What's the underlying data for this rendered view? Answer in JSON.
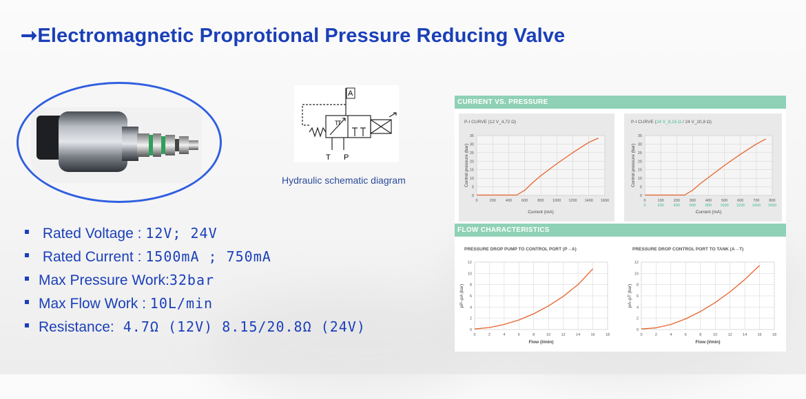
{
  "title": "➞Electromagnetic Proprotional Pressure Reducing Valve",
  "schematic": {
    "caption": "Hydraulic schematic diagram",
    "port_a": "A",
    "port_t": "T",
    "port_p": "P",
    "inner_t1": "T",
    "inner_t2": "T"
  },
  "specs": [
    {
      "label": " Rated  Voltage : ",
      "value": " 12V; 24V"
    },
    {
      "label": " Rated Current : ",
      "value": " 1500mA ; 750mA"
    },
    {
      "label": "Max Pressure Work:",
      "value": "32bar"
    },
    {
      "label": "Max Flow Work : ",
      "value": "10L/min"
    },
    {
      "label": "Resistance:",
      "value": " 4.7Ω  (12V) 8.15/20.8Ω  (24V)"
    }
  ],
  "current_panel": {
    "header": "CURRENT VS. PRESSURE"
  },
  "flow_panel": {
    "header": "FLOW CHARACTERISTICS"
  },
  "colors": {
    "accent": "#1a3fb8",
    "curve": "#e8622a",
    "panel_header": "#8fd1b6",
    "green_ticks": "#3dbb8c"
  },
  "chart_data": [
    {
      "type": "line",
      "title": "P-I CURVE (12 V_4,72 Ω)",
      "xlabel": "Current (mA)",
      "ylabel": "Control pressure (bar)",
      "x_ticks": [
        "0",
        "200",
        "400",
        "600",
        "800",
        "1000",
        "1200",
        "1400",
        "1600"
      ],
      "y_ticks": [
        "0",
        "5",
        "10",
        "15",
        "20",
        "25",
        "30",
        "35"
      ],
      "xlim": [
        0,
        1600
      ],
      "ylim": [
        0,
        35
      ],
      "series": [
        {
          "x": [
            0,
            500,
            600,
            700,
            800,
            1000,
            1200,
            1400,
            1520
          ],
          "y": [
            0.2,
            0.2,
            3,
            7.5,
            11.5,
            18.5,
            25,
            31,
            33.5
          ]
        }
      ]
    },
    {
      "type": "line",
      "title_parts": [
        "P-I CURVE (",
        "24 V_8,15 Ω",
        " / 24 V_20,8 Ω)"
      ],
      "xlabel": "Current (mA)",
      "ylabel": "Control pressure (bar)",
      "x_ticks": [
        "0",
        "100",
        "200",
        "300",
        "400",
        "500",
        "600",
        "700",
        "800"
      ],
      "x_ticks_secondary": [
        "0",
        "200",
        "400",
        "600",
        "800",
        "1000",
        "1200",
        "1400",
        "1600"
      ],
      "y_ticks": [
        "0",
        "5",
        "10",
        "15",
        "20",
        "25",
        "30",
        "35"
      ],
      "xlim": [
        0,
        800
      ],
      "ylim": [
        0,
        35
      ],
      "series": [
        {
          "x": [
            0,
            250,
            300,
            350,
            400,
            500,
            600,
            700,
            760
          ],
          "y": [
            0.2,
            0.2,
            3,
            7,
            10.5,
            17.5,
            24,
            30,
            33
          ]
        }
      ]
    },
    {
      "type": "line",
      "title": "PRESSURE DROP PUMP TO CONTROL PORT (P→A)",
      "xlabel": "Flow (l/min)",
      "ylabel": "pP–pA (bar)",
      "x_ticks": [
        "0",
        "2",
        "4",
        "6",
        "8",
        "10",
        "12",
        "14",
        "16",
        "18"
      ],
      "y_ticks": [
        "0",
        "2",
        "4",
        "6",
        "8",
        "10",
        "12"
      ],
      "xlim": [
        0,
        18
      ],
      "ylim": [
        0,
        12
      ],
      "series": [
        {
          "x": [
            0,
            2,
            4,
            6,
            8,
            10,
            12,
            14,
            16
          ],
          "y": [
            0.1,
            0.35,
            0.9,
            1.7,
            2.8,
            4.2,
            5.9,
            8.0,
            10.8
          ]
        }
      ]
    },
    {
      "type": "line",
      "title": "PRESSURE DROP CONTROL PORT TO TANK (A→T)",
      "xlabel": "Flow (l/min)",
      "ylabel": "pA–pT (bar)",
      "x_ticks": [
        "0",
        "2",
        "4",
        "6",
        "8",
        "10",
        "12",
        "14",
        "16",
        "18"
      ],
      "y_ticks": [
        "0",
        "2",
        "4",
        "6",
        "8",
        "10",
        "12"
      ],
      "xlim": [
        0,
        18
      ],
      "ylim": [
        0,
        12
      ],
      "series": [
        {
          "x": [
            0,
            2,
            4,
            6,
            8,
            10,
            12,
            14,
            16
          ],
          "y": [
            0.1,
            0.3,
            0.9,
            1.9,
            3.2,
            4.8,
            6.7,
            8.9,
            11.4
          ]
        }
      ]
    }
  ]
}
